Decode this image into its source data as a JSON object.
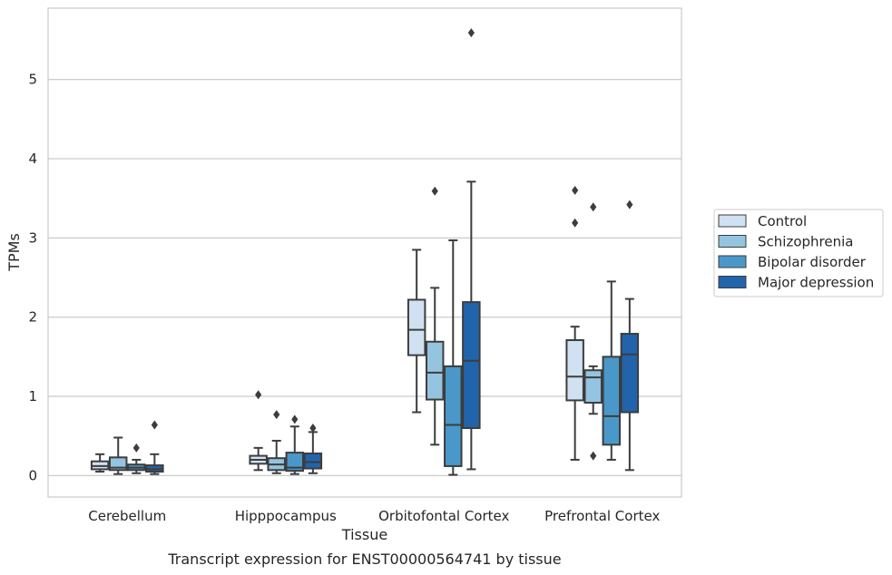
{
  "chart_data": {
    "type": "box",
    "title": "",
    "caption": "Transcript expression for ENST00000564741 by tissue",
    "xlabel": "Tissue",
    "ylabel": "TPMs",
    "ylim": [
      -0.27,
      5.9
    ],
    "yticks": [
      0,
      1,
      2,
      3,
      4,
      5
    ],
    "grid": "horizontal",
    "legend_position": "right",
    "categories": [
      "Cerebellum",
      "Hipppocampus",
      "Orbitofontal Cortex",
      "Prefrontal Cortex"
    ],
    "series": [
      {
        "name": "Control",
        "color": "#d0e1f2",
        "boxes": [
          {
            "whislo": 0.05,
            "q1": 0.08,
            "med": 0.12,
            "q3": 0.18,
            "whishi": 0.27,
            "fliers": []
          },
          {
            "whislo": 0.07,
            "q1": 0.15,
            "med": 0.2,
            "q3": 0.25,
            "whishi": 0.35,
            "fliers": [
              1.02
            ]
          },
          {
            "whislo": 0.8,
            "q1": 1.52,
            "med": 1.84,
            "q3": 2.22,
            "whishi": 2.85,
            "fliers": []
          },
          {
            "whislo": 0.2,
            "q1": 0.95,
            "med": 1.25,
            "q3": 1.71,
            "whishi": 1.88,
            "fliers": [
              3.19,
              3.6
            ]
          }
        ]
      },
      {
        "name": "Schizophrenia",
        "color": "#94c4df",
        "boxes": [
          {
            "whislo": 0.02,
            "q1": 0.07,
            "med": 0.1,
            "q3": 0.23,
            "whishi": 0.48,
            "fliers": []
          },
          {
            "whislo": 0.03,
            "q1": 0.07,
            "med": 0.14,
            "q3": 0.22,
            "whishi": 0.44,
            "fliers": [
              0.77
            ]
          },
          {
            "whislo": 0.39,
            "q1": 0.96,
            "med": 1.3,
            "q3": 1.69,
            "whishi": 2.37,
            "fliers": [
              3.59
            ]
          },
          {
            "whislo": 0.78,
            "q1": 0.92,
            "med": 1.24,
            "q3": 1.33,
            "whishi": 1.38,
            "fliers": [
              0.25,
              3.39
            ]
          }
        ]
      },
      {
        "name": "Bipolar disorder",
        "color": "#4a98c9",
        "boxes": [
          {
            "whislo": 0.03,
            "q1": 0.07,
            "med": 0.1,
            "q3": 0.14,
            "whishi": 0.2,
            "fliers": [
              0.35
            ]
          },
          {
            "whislo": 0.02,
            "q1": 0.06,
            "med": 0.1,
            "q3": 0.29,
            "whishi": 0.62,
            "fliers": [
              0.71
            ]
          },
          {
            "whislo": 0.01,
            "q1": 0.12,
            "med": 0.64,
            "q3": 1.38,
            "whishi": 2.97,
            "fliers": []
          },
          {
            "whislo": 0.2,
            "q1": 0.39,
            "med": 0.75,
            "q3": 1.5,
            "whishi": 2.45,
            "fliers": []
          }
        ]
      },
      {
        "name": "Major depression",
        "color": "#2164ab",
        "boxes": [
          {
            "whislo": 0.02,
            "q1": 0.05,
            "med": 0.08,
            "q3": 0.13,
            "whishi": 0.27,
            "fliers": [
              0.64
            ]
          },
          {
            "whislo": 0.03,
            "q1": 0.09,
            "med": 0.17,
            "q3": 0.28,
            "whishi": 0.55,
            "fliers": [
              0.6
            ]
          },
          {
            "whislo": 0.08,
            "q1": 0.6,
            "med": 1.45,
            "q3": 2.19,
            "whishi": 3.71,
            "fliers": [
              5.59
            ]
          },
          {
            "whislo": 0.07,
            "q1": 0.8,
            "med": 1.53,
            "q3": 1.79,
            "whishi": 2.23,
            "fliers": [
              3.42
            ]
          }
        ]
      }
    ]
  }
}
